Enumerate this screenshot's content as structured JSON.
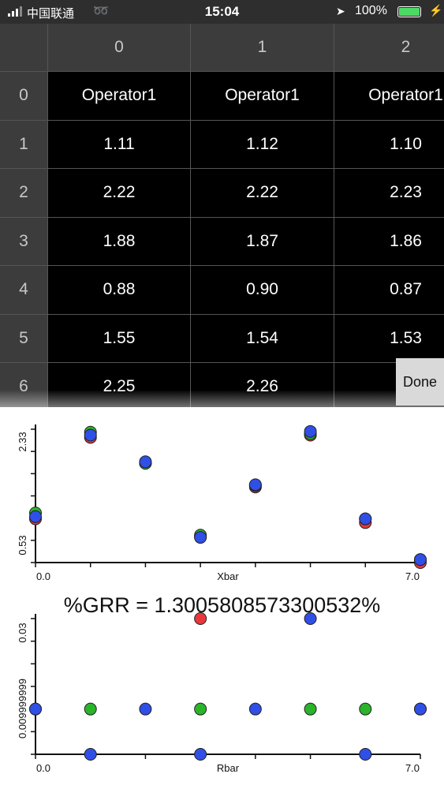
{
  "status_bar": {
    "carrier": "中国联通",
    "time": "15:04",
    "battery": "100%"
  },
  "table": {
    "column_headers": [
      "0",
      "1",
      "2"
    ],
    "row_headers": [
      "0",
      "1",
      "2",
      "3",
      "4",
      "5",
      "6"
    ],
    "rows": [
      [
        "Operator1",
        "Operator1",
        "Operator1"
      ],
      [
        "1.11",
        "1.12",
        "1.10"
      ],
      [
        "2.22",
        "2.22",
        "2.23"
      ],
      [
        "1.88",
        "1.87",
        "1.86"
      ],
      [
        "0.88",
        "0.90",
        "0.87"
      ],
      [
        "1.55",
        "1.54",
        "1.53"
      ],
      [
        "2.25",
        "2.26",
        "2"
      ]
    ]
  },
  "keyboard_toolbar": {
    "done_label": "Done"
  },
  "grr_text": "%GRR = 1.3005808573300532%",
  "chart_data": [
    {
      "type": "scatter",
      "title": "",
      "xlabel": "Xbar",
      "ylabel": "",
      "x_tick_labels": [
        "0.0",
        "7.0"
      ],
      "y_tick_labels": [
        "0.53",
        "2.33"
      ],
      "xlim": [
        0,
        7
      ],
      "ylim": [
        0.53,
        2.33
      ],
      "grid": false,
      "series": [
        {
          "color": "#e8383d",
          "points": [
            [
              0,
              1.12
            ],
            [
              1,
              2.22
            ],
            [
              2,
              1.88
            ],
            [
              3,
              0.88
            ],
            [
              4,
              1.55
            ],
            [
              5,
              2.25
            ],
            [
              6,
              1.07
            ],
            [
              7,
              0.53
            ]
          ]
        },
        {
          "color": "#2bb32b",
          "points": [
            [
              0,
              1.2
            ],
            [
              1,
              2.29
            ],
            [
              2,
              1.87
            ],
            [
              3,
              0.9
            ],
            [
              4,
              1.57
            ],
            [
              5,
              2.27
            ],
            [
              6,
              1.12
            ],
            [
              7,
              0.57
            ]
          ]
        },
        {
          "color": "#2f4fe6",
          "points": [
            [
              0,
              1.15
            ],
            [
              1,
              2.25
            ],
            [
              2,
              1.89
            ],
            [
              3,
              0.87
            ],
            [
              4,
              1.58
            ],
            [
              5,
              2.3
            ],
            [
              6,
              1.12
            ],
            [
              7,
              0.57
            ]
          ]
        }
      ]
    },
    {
      "type": "scatter",
      "title": "",
      "xlabel": "Rbar",
      "ylabel": "",
      "x_tick_labels": [
        "0.0",
        "7.0"
      ],
      "y_tick_labels": [
        "0.009999999",
        "0.03"
      ],
      "xlim": [
        0,
        7
      ],
      "ylim": [
        0,
        0.03
      ],
      "grid": false,
      "series": [
        {
          "color": "#e8383d",
          "points": [
            [
              3,
              0.03
            ],
            [
              7,
              0.01
            ]
          ]
        },
        {
          "color": "#2bb32b",
          "points": [
            [
              0,
              0.01
            ],
            [
              1,
              0.01
            ],
            [
              3,
              0.01
            ],
            [
              5,
              0.01
            ],
            [
              6,
              0.01
            ]
          ]
        },
        {
          "color": "#2f4fe6",
          "points": [
            [
              0,
              0.01
            ],
            [
              1,
              0.0
            ],
            [
              2,
              0.01
            ],
            [
              3,
              0.0
            ],
            [
              4,
              0.01
            ],
            [
              5,
              0.03
            ],
            [
              6,
              0.0
            ],
            [
              7,
              0.01
            ]
          ]
        }
      ]
    }
  ]
}
